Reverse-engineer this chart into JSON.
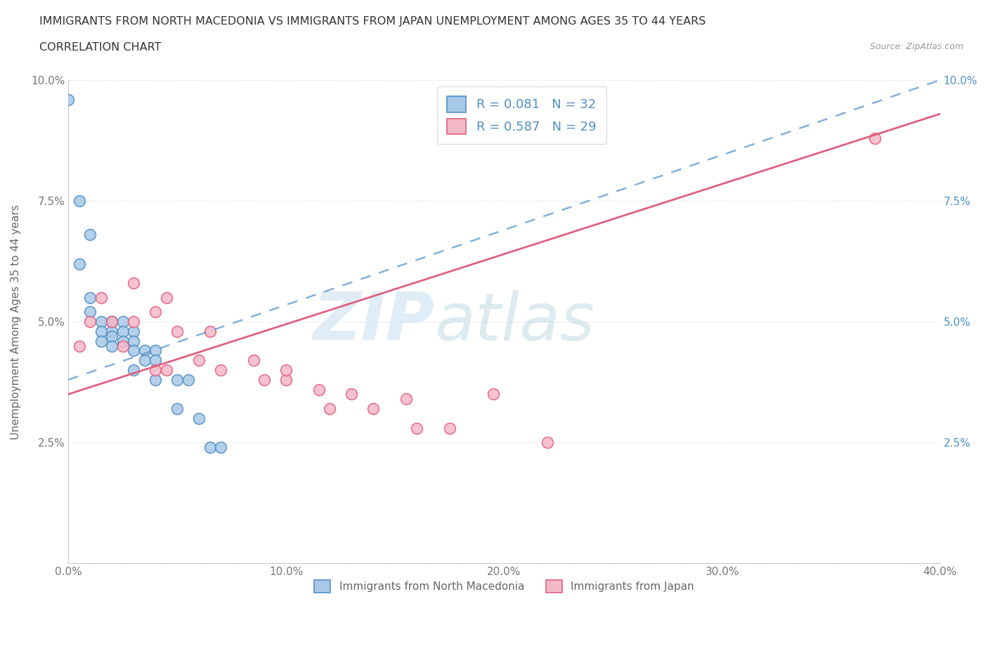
{
  "title_line1": "IMMIGRANTS FROM NORTH MACEDONIA VS IMMIGRANTS FROM JAPAN UNEMPLOYMENT AMONG AGES 35 TO 44 YEARS",
  "title_line2": "CORRELATION CHART",
  "source": "Source: ZipAtlas.com",
  "ylabel": "Unemployment Among Ages 35 to 44 years",
  "xmin": 0.0,
  "xmax": 0.4,
  "ymin": 0.0,
  "ymax": 0.1,
  "xticks": [
    0.0,
    0.1,
    0.2,
    0.3,
    0.4
  ],
  "xtick_labels": [
    "0.0%",
    "10.0%",
    "20.0%",
    "30.0%",
    "40.0%"
  ],
  "yticks": [
    0.0,
    0.025,
    0.05,
    0.075,
    0.1
  ],
  "ytick_labels": [
    "",
    "2.5%",
    "5.0%",
    "7.5%",
    "10.0%"
  ],
  "legend1_R": "0.081",
  "legend1_N": "32",
  "legend2_R": "0.587",
  "legend2_N": "29",
  "color_blue": "#a8c8e8",
  "color_pink": "#f5b8c8",
  "line_color_blue": "#5090c8",
  "line_color_pink": "#e06080",
  "blue_scatter_x": [
    0.0,
    0.005,
    0.005,
    0.01,
    0.01,
    0.01,
    0.015,
    0.015,
    0.015,
    0.02,
    0.02,
    0.02,
    0.02,
    0.02,
    0.025,
    0.025,
    0.025,
    0.03,
    0.03,
    0.03,
    0.03,
    0.035,
    0.035,
    0.04,
    0.04,
    0.04,
    0.05,
    0.05,
    0.055,
    0.06,
    0.065,
    0.07
  ],
  "blue_scatter_y": [
    0.096,
    0.075,
    0.062,
    0.068,
    0.055,
    0.052,
    0.05,
    0.048,
    0.046,
    0.05,
    0.05,
    0.048,
    0.047,
    0.045,
    0.05,
    0.048,
    0.046,
    0.048,
    0.046,
    0.044,
    0.04,
    0.044,
    0.042,
    0.044,
    0.042,
    0.038,
    0.038,
    0.032,
    0.038,
    0.03,
    0.024,
    0.024
  ],
  "pink_scatter_x": [
    0.005,
    0.01,
    0.015,
    0.02,
    0.025,
    0.03,
    0.03,
    0.04,
    0.04,
    0.045,
    0.045,
    0.05,
    0.06,
    0.065,
    0.07,
    0.085,
    0.09,
    0.1,
    0.1,
    0.115,
    0.12,
    0.13,
    0.14,
    0.155,
    0.16,
    0.175,
    0.195,
    0.22,
    0.37
  ],
  "pink_scatter_y": [
    0.045,
    0.05,
    0.055,
    0.05,
    0.045,
    0.058,
    0.05,
    0.052,
    0.04,
    0.055,
    0.04,
    0.048,
    0.042,
    0.048,
    0.04,
    0.042,
    0.038,
    0.038,
    0.04,
    0.036,
    0.032,
    0.035,
    0.032,
    0.034,
    0.028,
    0.028,
    0.035,
    0.025,
    0.088
  ],
  "blue_trendline_x0": 0.0,
  "blue_trendline_y0": 0.038,
  "blue_trendline_x1": 0.4,
  "blue_trendline_y1": 0.1,
  "pink_trendline_x0": 0.0,
  "pink_trendline_y0": 0.035,
  "pink_trendline_x1": 0.4,
  "pink_trendline_y1": 0.093,
  "watermark_zip": "ZIP",
  "watermark_atlas": "atlas",
  "background_color": "#ffffff",
  "grid_color": "#d8d8d8"
}
